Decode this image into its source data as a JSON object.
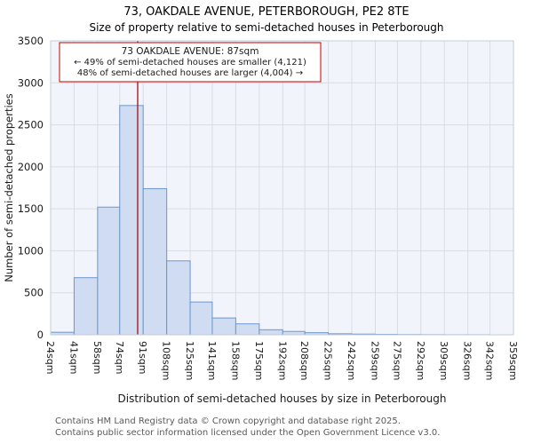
{
  "footer": {
    "line1": "Contains HM Land Registry data © Crown copyright and database right 2025.",
    "line2": "Contains public sector information licensed under the Open Government Licence v3.0."
  },
  "chart_data": {
    "type": "bar",
    "title": "73, OAKDALE AVENUE, PETERBOROUGH, PE2 8TE",
    "subtitle": "Size of property relative to semi-detached houses in Peterborough",
    "xlabel": "Distribution of semi-detached houses by size in Peterborough",
    "ylabel": "Number of semi-detached properties",
    "ylim": [
      0,
      3500
    ],
    "ytick_step": 500,
    "ytick_labels": [
      "0",
      "500",
      "1000",
      "1500",
      "2000",
      "2500",
      "3000",
      "3500"
    ],
    "bin_edges_sqm": [
      24,
      41,
      58,
      74,
      91,
      108,
      125,
      141,
      158,
      175,
      192,
      208,
      225,
      242,
      259,
      275,
      292,
      309,
      326,
      342,
      359
    ],
    "bin_labels": [
      "24sqm",
      "41sqm",
      "58sqm",
      "74sqm",
      "91sqm",
      "108sqm",
      "125sqm",
      "141sqm",
      "158sqm",
      "175sqm",
      "192sqm",
      "208sqm",
      "225sqm",
      "242sqm",
      "259sqm",
      "275sqm",
      "292sqm",
      "309sqm",
      "326sqm",
      "342sqm",
      "359sqm"
    ],
    "values": [
      30,
      680,
      1520,
      2730,
      1740,
      880,
      390,
      200,
      130,
      60,
      40,
      25,
      12,
      8,
      5,
      3,
      2,
      1,
      1,
      0
    ],
    "marker": {
      "value_sqm": 87,
      "color": "#a01010"
    },
    "annotation": {
      "line1": "73 OAKDALE AVENUE: 87sqm",
      "line2": "← 49% of semi-detached houses are smaller (4,121)",
      "line3": "48% of semi-detached houses are larger (4,004) →",
      "border_color": "#cc0000"
    },
    "colors": {
      "bar_fill": "#cfdcf1",
      "bar_stroke": "#6e96cc",
      "grid": "#d9dde3",
      "plot_bg": "#f1f5fb",
      "plot_border": "#c6ccd6"
    },
    "legend": null,
    "grid": true
  }
}
